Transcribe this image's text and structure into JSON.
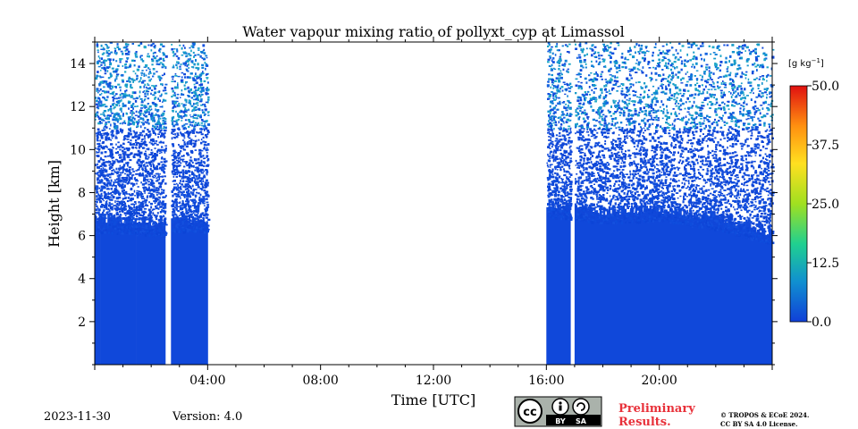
{
  "chart_data": {
    "type": "heatmap",
    "title": "Water vapour mixing ratio of pollyxt_cyp at Limassol",
    "xlabel": "Time [UTC]",
    "ylabel": "Height [km]",
    "xlim_hours": [
      0,
      24
    ],
    "ylim_km": [
      0,
      15
    ],
    "x_ticks": [
      "04:00",
      "08:00",
      "12:00",
      "16:00",
      "20:00"
    ],
    "y_ticks": [
      "2",
      "4",
      "6",
      "8",
      "10",
      "12",
      "14"
    ],
    "colorbar": {
      "unit_base": "[g kg",
      "unit_exp": "−1",
      "unit_end": "]",
      "ticks": [
        "0.0",
        "12.5",
        "25.0",
        "37.5",
        "50.0"
      ],
      "range": [
        0,
        50
      ],
      "colors": [
        "#1040d8",
        "#1090d0",
        "#20d090",
        "#a0e020",
        "#ffe020",
        "#ff9010",
        "#e01010"
      ]
    },
    "measurement_segments_hours": [
      [
        0,
        2.5
      ],
      [
        2.7,
        4.0
      ],
      [
        16.0,
        16.85
      ],
      [
        17.0,
        24.0
      ]
    ],
    "dense_signal_top_km": [
      {
        "hour": 0.0,
        "top_km": 6.8
      },
      {
        "hour": 2.4,
        "top_km": 6.6
      },
      {
        "hour": 2.8,
        "top_km": 6.8
      },
      {
        "hour": 4.0,
        "top_km": 6.8
      },
      {
        "hour": 16.0,
        "top_km": 7.5
      },
      {
        "hour": 18.0,
        "top_km": 7.2
      },
      {
        "hour": 20.0,
        "top_km": 7.3
      },
      {
        "hour": 22.0,
        "top_km": 6.9
      },
      {
        "hour": 24.0,
        "top_km": 6.2
      }
    ],
    "typical_value_g_per_kg": 1.5
  },
  "footer": {
    "date": "2023-11-30",
    "version": "Version: 4.0",
    "preliminary": "Preliminary\nResults.",
    "preliminary_line1": "Preliminary",
    "preliminary_line2": "Results.",
    "copyright_line1": "© TROPOS & ECoE 2024.",
    "copyright_line2": "CC BY SA 4.0 License.",
    "license_badge": {
      "by": "BY",
      "sa": "SA"
    }
  }
}
